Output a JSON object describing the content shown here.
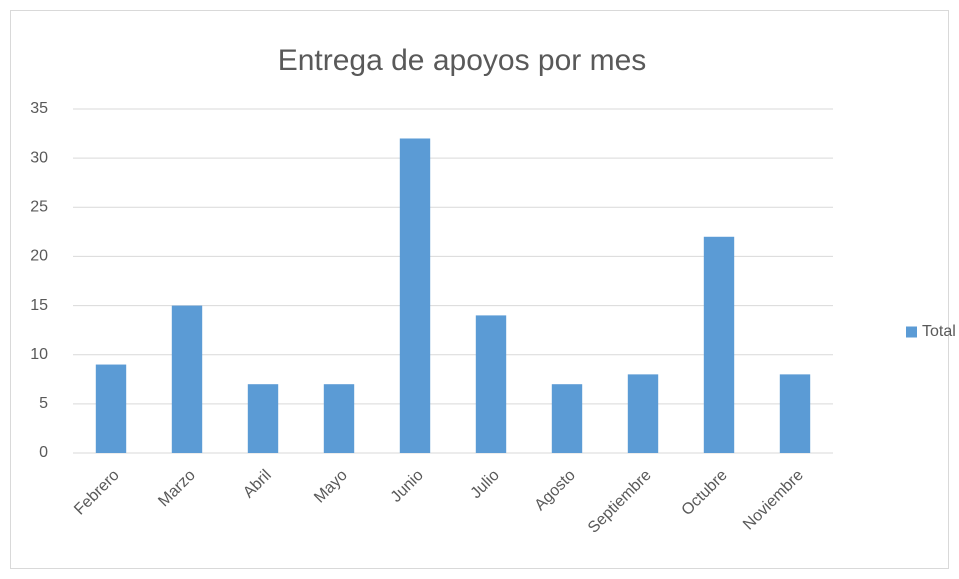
{
  "chart_data": {
    "type": "bar",
    "title": "Entrega de apoyos por mes",
    "categories": [
      "Febrero",
      "Marzo",
      "Abril",
      "Mayo",
      "Junio",
      "Julio",
      "Agosto",
      "Septiembre",
      "Octubre",
      "Noviembre"
    ],
    "series": [
      {
        "name": "Total",
        "color": "#5b9bd5",
        "values": [
          9,
          15,
          7,
          7,
          32,
          14,
          7,
          8,
          22,
          8
        ]
      }
    ],
    "ylim": [
      0,
      35
    ],
    "yticks": [
      0,
      5,
      10,
      15,
      20,
      25,
      30,
      35
    ],
    "grid": true,
    "legend": "right"
  }
}
